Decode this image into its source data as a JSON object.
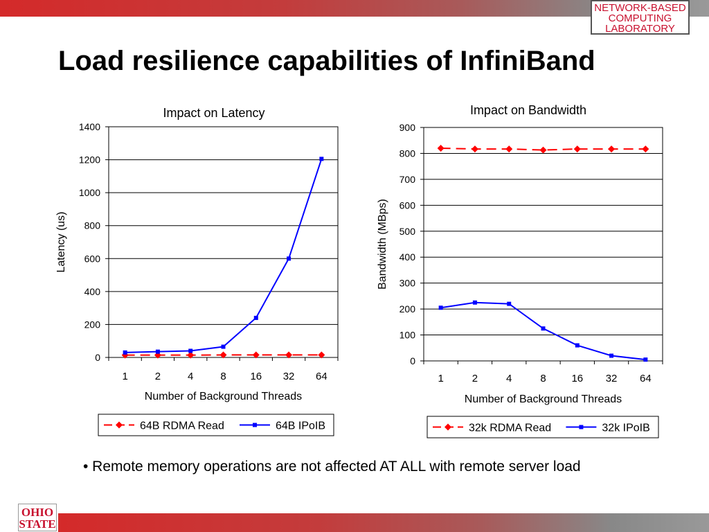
{
  "slide": {
    "title": "Load resilience capabilities of InfiniBand",
    "bullet": "• Remote memory operations are not affected AT ALL with remote server load",
    "lab_logo": [
      "NETWORK-BASED",
      "COMPUTING",
      "LABORATORY"
    ],
    "osu_logo": [
      "OHIO",
      "STATE"
    ]
  },
  "colors": {
    "rdma": "#ff0000",
    "ipoib": "#0000ff",
    "brand": "#c8102e"
  },
  "chart_data": [
    {
      "type": "line",
      "title": "Impact on Latency",
      "xlabel": "Number of Background Threads",
      "ylabel": "Latency (us)",
      "categories": [
        "1",
        "2",
        "4",
        "8",
        "16",
        "32",
        "64"
      ],
      "ylim": [
        0,
        1400
      ],
      "yticks": [
        "0",
        "200",
        "400",
        "600",
        "800",
        "1000",
        "1200",
        "1400"
      ],
      "grid": true,
      "legend": "bottom",
      "series": [
        {
          "name": "64B RDMA Read",
          "values": [
            14,
            14,
            14,
            15,
            15,
            15,
            15
          ]
        },
        {
          "name": "64B IPoIB",
          "values": [
            30,
            35,
            40,
            65,
            240,
            600,
            1205
          ]
        }
      ]
    },
    {
      "type": "line",
      "title": "Impact on Bandwidth",
      "xlabel": "Number of Background Threads",
      "ylabel": "Bandwidth (MBps)",
      "categories": [
        "1",
        "2",
        "4",
        "8",
        "16",
        "32",
        "64"
      ],
      "ylim": [
        0,
        900
      ],
      "yticks": [
        "0",
        "100",
        "200",
        "300",
        "400",
        "500",
        "600",
        "700",
        "800",
        "900"
      ],
      "grid": true,
      "legend": "bottom",
      "series": [
        {
          "name": "32k RDMA Read",
          "values": [
            820,
            817,
            817,
            813,
            817,
            817,
            817
          ]
        },
        {
          "name": "32k IPoIB",
          "values": [
            205,
            225,
            220,
            125,
            60,
            20,
            5
          ]
        }
      ]
    }
  ]
}
